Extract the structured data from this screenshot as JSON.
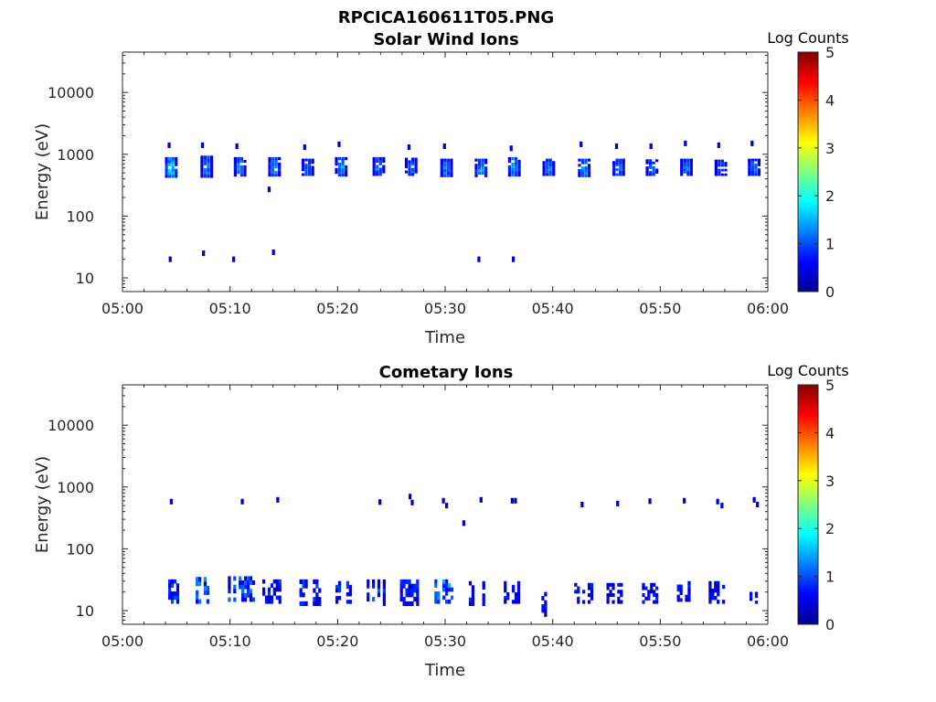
{
  "figure": {
    "title": "RPCICA160611T05.PNG",
    "colormap": [
      "#00008f",
      "#0000ff",
      "#0080ff",
      "#00ffff",
      "#80ff80",
      "#ffff00",
      "#ff8000",
      "#ff0000",
      "#800000"
    ]
  },
  "chart_data": [
    {
      "type": "heatmap",
      "title": "Solar Wind Ions",
      "xlabel": "Time",
      "ylabel": "Energy (eV)",
      "x_ticks": [
        "05:00",
        "05:10",
        "05:20",
        "05:30",
        "05:40",
        "05:50",
        "06:00"
      ],
      "x_range_min": [
        0,
        60
      ],
      "y_scale": "log",
      "y_ticks": [
        "10",
        "100",
        "1000",
        "10000"
      ],
      "y_range_ev": [
        6,
        45000
      ],
      "colorbar": {
        "label": "Log Counts",
        "ticks": [
          "0",
          "1",
          "2",
          "3",
          "4",
          "5"
        ],
        "range": [
          0,
          5
        ]
      },
      "blobs": [
        {
          "t": 4.4,
          "emin": 420,
          "emax": 900,
          "logc": 1.6
        },
        {
          "t": 7.7,
          "emin": 420,
          "emax": 950,
          "logc": 1.2
        },
        {
          "t": 10.8,
          "emin": 440,
          "emax": 900,
          "logc": 1.3
        },
        {
          "t": 14.0,
          "emin": 440,
          "emax": 900,
          "logc": 1.4
        },
        {
          "t": 17.1,
          "emin": 450,
          "emax": 850,
          "logc": 1.1
        },
        {
          "t": 20.2,
          "emin": 440,
          "emax": 900,
          "logc": 1.3
        },
        {
          "t": 23.7,
          "emin": 450,
          "emax": 900,
          "logc": 1.2
        },
        {
          "t": 26.7,
          "emin": 450,
          "emax": 880,
          "logc": 1.2
        },
        {
          "t": 30.0,
          "emin": 430,
          "emax": 850,
          "logc": 1.3
        },
        {
          "t": 33.2,
          "emin": 430,
          "emax": 850,
          "logc": 1.5
        },
        {
          "t": 36.3,
          "emin": 440,
          "emax": 900,
          "logc": 1.4
        },
        {
          "t": 39.5,
          "emin": 450,
          "emax": 850,
          "logc": 1.2
        },
        {
          "t": 42.8,
          "emin": 430,
          "emax": 850,
          "logc": 1.3
        },
        {
          "t": 46.0,
          "emin": 450,
          "emax": 850,
          "logc": 1.3
        },
        {
          "t": 49.1,
          "emin": 450,
          "emax": 830,
          "logc": 1.1
        },
        {
          "t": 52.3,
          "emin": 450,
          "emax": 850,
          "logc": 1.2
        },
        {
          "t": 55.5,
          "emin": 450,
          "emax": 820,
          "logc": 1.1
        },
        {
          "t": 58.6,
          "emin": 450,
          "emax": 850,
          "logc": 1.2
        }
      ],
      "specks": [
        {
          "t": 4.2,
          "e": 1400
        },
        {
          "t": 7.3,
          "e": 1400
        },
        {
          "t": 10.5,
          "e": 1350
        },
        {
          "t": 13.5,
          "e": 270
        },
        {
          "t": 16.8,
          "e": 1300
        },
        {
          "t": 20.0,
          "e": 1450
        },
        {
          "t": 26.5,
          "e": 1300
        },
        {
          "t": 29.8,
          "e": 1350
        },
        {
          "t": 36.0,
          "e": 1250
        },
        {
          "t": 42.5,
          "e": 1450
        },
        {
          "t": 45.8,
          "e": 1350
        },
        {
          "t": 49.0,
          "e": 1350
        },
        {
          "t": 52.2,
          "e": 1500
        },
        {
          "t": 55.3,
          "e": 1400
        },
        {
          "t": 58.4,
          "e": 1500
        },
        {
          "t": 4.3,
          "e": 20
        },
        {
          "t": 7.4,
          "e": 25
        },
        {
          "t": 10.2,
          "e": 20
        },
        {
          "t": 13.9,
          "e": 26
        },
        {
          "t": 33.0,
          "e": 20
        },
        {
          "t": 36.2,
          "e": 20
        }
      ]
    },
    {
      "type": "heatmap",
      "title": "Cometary Ions",
      "xlabel": "Time",
      "ylabel": "Energy (eV)",
      "x_ticks": [
        "05:00",
        "05:10",
        "05:20",
        "05:30",
        "05:40",
        "05:50",
        "06:00"
      ],
      "x_range_min": [
        0,
        60
      ],
      "y_scale": "log",
      "y_ticks": [
        "10",
        "100",
        "1000",
        "10000"
      ],
      "y_range_ev": [
        6,
        45000
      ],
      "colorbar": {
        "label": "Log Counts",
        "ticks": [
          "0",
          "1",
          "2",
          "3",
          "4",
          "5"
        ],
        "range": [
          0,
          5
        ]
      },
      "bands": [
        {
          "t0": 3.5,
          "t1": 5.2,
          "emin": 13,
          "emax": 32,
          "logc": 0.9
        },
        {
          "t0": 6.8,
          "t1": 8.4,
          "emin": 13,
          "emax": 35,
          "logc": 1.2
        },
        {
          "t0": 9.8,
          "t1": 12.2,
          "emin": 14,
          "emax": 36,
          "logc": 1.1
        },
        {
          "t0": 13.0,
          "t1": 14.6,
          "emin": 13,
          "emax": 32,
          "logc": 0.8
        },
        {
          "t0": 16.2,
          "t1": 18.3,
          "emin": 12,
          "emax": 32,
          "logc": 0.9
        },
        {
          "t0": 19.8,
          "t1": 21.1,
          "emin": 13,
          "emax": 30,
          "logc": 0.8
        },
        {
          "t0": 22.7,
          "t1": 24.4,
          "emin": 12,
          "emax": 32,
          "logc": 1.0
        },
        {
          "t0": 25.8,
          "t1": 27.5,
          "emin": 12,
          "emax": 32,
          "logc": 0.8
        },
        {
          "t0": 29.0,
          "t1": 30.8,
          "emin": 13,
          "emax": 32,
          "logc": 1.3
        },
        {
          "t0": 32.2,
          "t1": 33.7,
          "emin": 12,
          "emax": 30,
          "logc": 0.8
        },
        {
          "t0": 35.2,
          "t1": 36.8,
          "emin": 13,
          "emax": 30,
          "logc": 0.7
        },
        {
          "t0": 38.7,
          "t1": 39.7,
          "emin": 8,
          "emax": 20,
          "logc": 0.6
        },
        {
          "t0": 42.0,
          "t1": 43.7,
          "emin": 13,
          "emax": 28,
          "logc": 0.7
        },
        {
          "t0": 45.0,
          "t1": 46.4,
          "emin": 13,
          "emax": 28,
          "logc": 0.6
        },
        {
          "t0": 48.3,
          "t1": 49.8,
          "emin": 13,
          "emax": 28,
          "logc": 0.7
        },
        {
          "t0": 51.3,
          "t1": 52.9,
          "emin": 14,
          "emax": 30,
          "logc": 0.7
        },
        {
          "t0": 54.5,
          "t1": 55.9,
          "emin": 13,
          "emax": 30,
          "logc": 0.6
        },
        {
          "t0": 58.3,
          "t1": 59.0,
          "emin": 13,
          "emax": 25,
          "logc": 0.6
        }
      ],
      "specks": [
        {
          "t": 4.4,
          "e": 580
        },
        {
          "t": 11.0,
          "e": 580
        },
        {
          "t": 14.3,
          "e": 620
        },
        {
          "t": 23.8,
          "e": 570
        },
        {
          "t": 26.6,
          "e": 700
        },
        {
          "t": 26.8,
          "e": 560
        },
        {
          "t": 29.7,
          "e": 600
        },
        {
          "t": 30.0,
          "e": 500
        },
        {
          "t": 31.6,
          "e": 260
        },
        {
          "t": 33.2,
          "e": 620
        },
        {
          "t": 36.1,
          "e": 600
        },
        {
          "t": 36.4,
          "e": 600
        },
        {
          "t": 42.6,
          "e": 520
        },
        {
          "t": 45.9,
          "e": 540
        },
        {
          "t": 48.9,
          "e": 590
        },
        {
          "t": 52.1,
          "e": 600
        },
        {
          "t": 55.2,
          "e": 580
        },
        {
          "t": 55.6,
          "e": 500
        },
        {
          "t": 58.6,
          "e": 620
        },
        {
          "t": 58.9,
          "e": 520
        }
      ]
    }
  ]
}
